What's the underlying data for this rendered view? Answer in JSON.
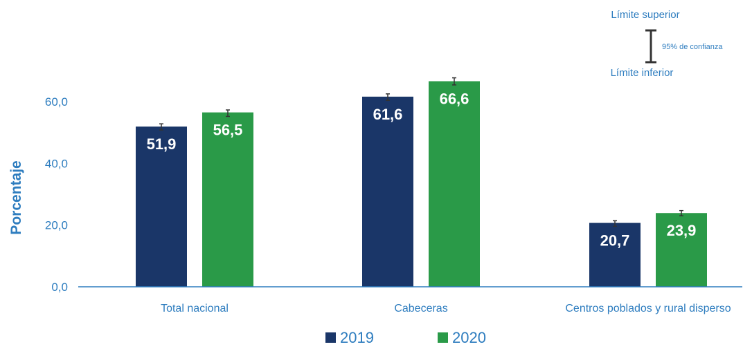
{
  "chart_data": {
    "type": "bar",
    "categories": [
      "Total nacional",
      "Cabeceras",
      "Centros poblados y rural disperso"
    ],
    "series": [
      {
        "name": "2019",
        "color": "#1a3668",
        "values": [
          51.9,
          61.6,
          20.7
        ],
        "labels": [
          "51,9",
          "61,6",
          "20,7"
        ],
        "ci_low": [
          50.8,
          60.4,
          19.6
        ],
        "ci_high": [
          52.8,
          62.5,
          21.4
        ]
      },
      {
        "name": "2020",
        "color": "#2a9a48",
        "values": [
          56.5,
          66.6,
          23.9
        ],
        "labels": [
          "56,5",
          "66,6",
          "23,9"
        ],
        "ci_low": [
          55.2,
          65.4,
          23.0
        ],
        "ci_high": [
          57.3,
          67.7,
          24.7
        ]
      }
    ],
    "title": "",
    "xlabel": "",
    "ylabel": "Porcentaje",
    "ylim": [
      0,
      60
    ],
    "yticks": [
      0,
      20,
      40,
      60
    ],
    "ytick_labels": [
      "0,0",
      "20,0",
      "40,0",
      "60,0"
    ],
    "grid": false,
    "legend_position": "bottom",
    "error_bar_color": "#333333",
    "ci_legend": {
      "upper": "Límite superior",
      "lower": "Límite inferior",
      "label": "95% de confianza"
    },
    "axis_color": "#2e7dbf"
  }
}
